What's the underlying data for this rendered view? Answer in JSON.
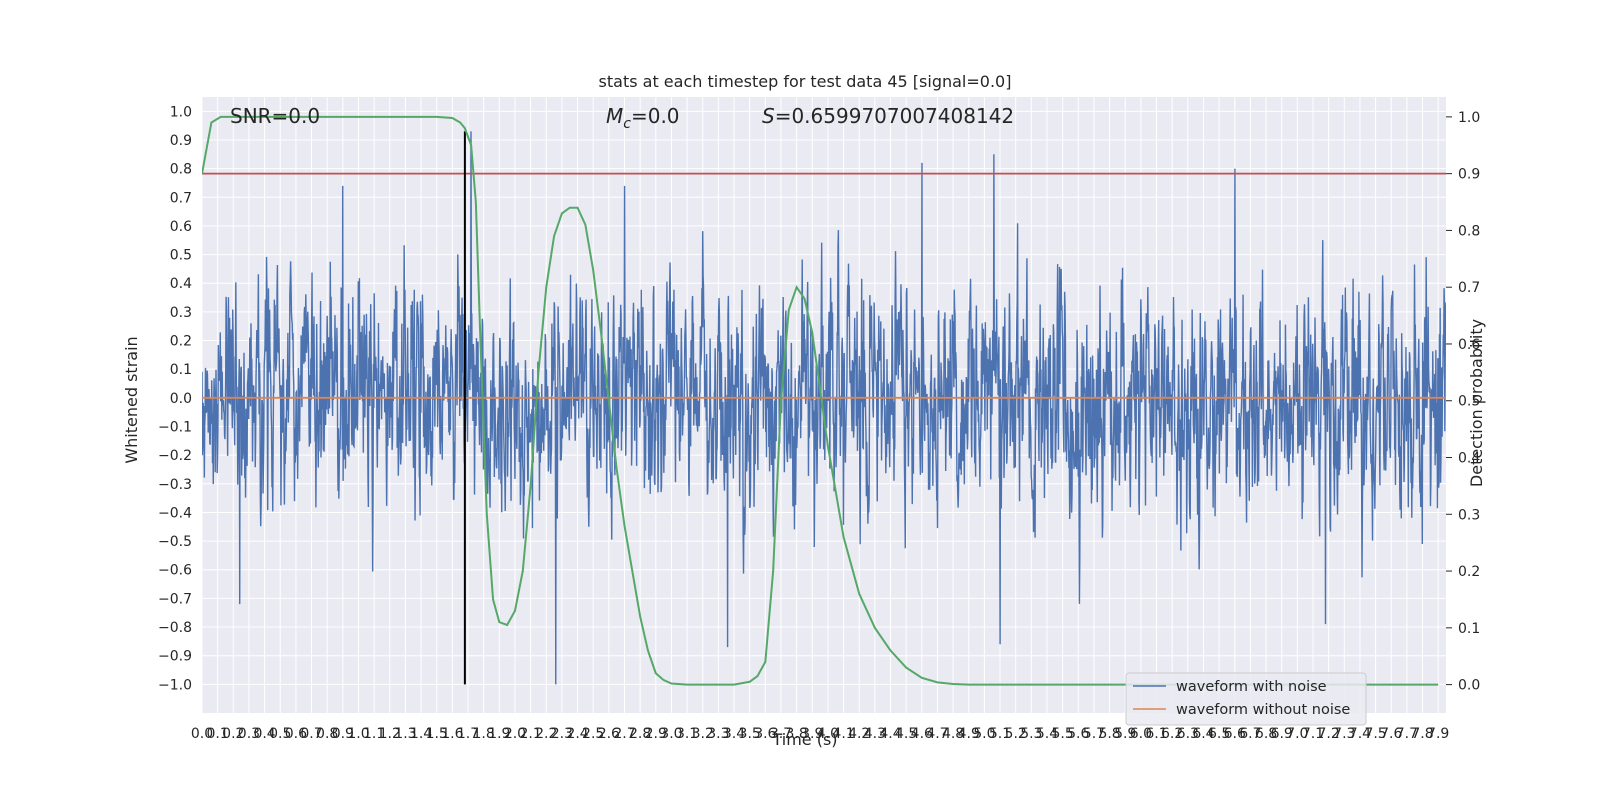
{
  "chart_data": {
    "type": "line",
    "title": "stats at each timestep for test data 45 [signal=0.0]",
    "xlabel": "Time (s)",
    "ylabel": "Whitened strain",
    "ylabel_right": "Detection probability",
    "xlim": [
      0.0,
      7.95
    ],
    "ylim": [
      -1.1,
      1.05
    ],
    "ylim_right": [
      -0.05,
      1.035
    ],
    "x_ticks": [
      0.0,
      0.1,
      0.2,
      0.3,
      0.4,
      0.5,
      0.6,
      0.7,
      0.8,
      0.9,
      1.0,
      1.1,
      1.2,
      1.3,
      1.4,
      1.5,
      1.6,
      1.7,
      1.8,
      1.9,
      2.0,
      2.1,
      2.2,
      2.3,
      2.4,
      2.5,
      2.6,
      2.7,
      2.8,
      2.9,
      3.0,
      3.1,
      3.2,
      3.3,
      3.4,
      3.5,
      3.6,
      3.7,
      3.8,
      3.9,
      4.0,
      4.1,
      4.2,
      4.3,
      4.4,
      4.5,
      4.6,
      4.7,
      4.8,
      4.9,
      5.0,
      5.1,
      5.2,
      5.3,
      5.4,
      5.5,
      5.6,
      5.7,
      5.8,
      5.9,
      6.0,
      6.1,
      6.2,
      6.3,
      6.4,
      6.5,
      6.6,
      6.7,
      6.8,
      6.9,
      7.0,
      7.1,
      7.2,
      7.3,
      7.4,
      7.5,
      7.6,
      7.7,
      7.8,
      7.9
    ],
    "x_tick_labels": [
      "0.0",
      "0.1",
      "0.2",
      "0.3",
      "0.4",
      "0.5",
      "0.6",
      "0.7",
      "0.8",
      "0.9",
      "1.0",
      "1.1",
      "1.2",
      "1.3",
      "1.4",
      "1.5",
      "1.6",
      "1.7",
      "1.8",
      "1.9",
      "2.0",
      "2.1",
      "2.2",
      "2.3",
      "2.4",
      "2.5",
      "2.6",
      "2.7",
      "2.8",
      "2.9",
      "3.0",
      "3.1",
      "3.2",
      "3.3",
      "3.4",
      "3.5",
      "3.6",
      "3.7",
      "3.8",
      "3.9",
      "4.0",
      "4.1",
      "4.2",
      "4.3",
      "4.4",
      "4.5",
      "4.6",
      "4.7",
      "4.8",
      "4.9",
      "5.0",
      "5.1",
      "5.2",
      "5.3",
      "5.4",
      "5.5",
      "5.6",
      "5.7",
      "5.8",
      "5.9",
      "6.0",
      "6.1",
      "6.2",
      "6.3",
      "6.4",
      "6.5",
      "6.6",
      "6.7",
      "6.8",
      "6.9",
      "7.0",
      "7.1",
      "7.2",
      "7.3",
      "7.4",
      "7.5",
      "7.6",
      "7.7",
      "7.8",
      "7.9"
    ],
    "y_ticks": [
      1.0,
      0.9,
      0.8,
      0.7,
      0.6,
      0.5,
      0.4,
      0.3,
      0.2,
      0.1,
      0.0,
      -0.1,
      -0.2,
      -0.3,
      -0.4,
      -0.5,
      -0.6,
      -0.7,
      -0.8,
      -0.9,
      -1.0
    ],
    "y_tick_labels": [
      "1.0",
      "0.9",
      "0.8",
      "0.7",
      "0.6",
      "0.5",
      "0.4",
      "0.3",
      "0.2",
      "0.1",
      "0.0",
      "−0.1",
      "−0.2",
      "−0.3",
      "−0.4",
      "−0.5",
      "−0.6",
      "−0.7",
      "−0.8",
      "−0.9",
      "−1.0"
    ],
    "y_right_ticks": [
      1.0,
      0.9,
      0.8,
      0.7,
      0.6,
      0.5,
      0.4,
      0.3,
      0.2,
      0.1,
      0.0
    ],
    "y_right_tick_labels": [
      "1.0",
      "0.9",
      "0.8",
      "0.7",
      "0.6",
      "0.5",
      "0.4",
      "0.3",
      "0.2",
      "0.1",
      "0.0"
    ],
    "grid": true,
    "legend_position": "lower-right",
    "annotations": {
      "snr": "SNR=0.0",
      "mc_symbol": "M",
      "mc_subscript": "c",
      "mc_value": "=0.0",
      "s_symbol": "S",
      "s_value": "=0.6599707007408142"
    },
    "marker_time": 1.68,
    "threshold": 0.9,
    "series": [
      {
        "name": "waveform with noise",
        "color": "#4c72b0",
        "axis": "left",
        "noise_envelope": 0.3,
        "amplitude_range": [
          -1.0,
          0.93
        ],
        "peaks": [
          {
            "x": 1.72,
            "y": 0.93
          },
          {
            "x": 4.6,
            "y": 0.82
          },
          {
            "x": 5.06,
            "y": 0.85
          },
          {
            "x": 6.6,
            "y": 0.8
          },
          {
            "x": 2.7,
            "y": 0.74
          },
          {
            "x": 0.9,
            "y": 0.74
          },
          {
            "x": 3.36,
            "y": -0.87
          },
          {
            "x": 2.26,
            "y": -1.0
          },
          {
            "x": 5.1,
            "y": -0.86
          },
          {
            "x": 7.18,
            "y": -0.79
          },
          {
            "x": 0.24,
            "y": -0.72
          }
        ]
      },
      {
        "name": "waveform without noise",
        "color": "#dd8452",
        "axis": "left",
        "x": [
          0.0,
          7.95
        ],
        "y": [
          0.0,
          0.0
        ]
      },
      {
        "color": "#55a868",
        "axis": "right",
        "x": [
          0.0,
          0.06,
          0.12,
          0.2,
          0.4,
          0.8,
          1.2,
          1.5,
          1.6,
          1.65,
          1.68,
          1.72,
          1.75,
          1.78,
          1.82,
          1.86,
          1.9,
          1.95,
          2.0,
          2.05,
          2.1,
          2.15,
          2.2,
          2.25,
          2.3,
          2.35,
          2.4,
          2.45,
          2.5,
          2.55,
          2.6,
          2.65,
          2.7,
          2.75,
          2.8,
          2.85,
          2.9,
          2.95,
          3.0,
          3.1,
          3.2,
          3.3,
          3.4,
          3.5,
          3.55,
          3.6,
          3.65,
          3.7,
          3.75,
          3.8,
          3.85,
          3.9,
          3.95,
          4.0,
          4.05,
          4.1,
          4.2,
          4.3,
          4.4,
          4.5,
          4.6,
          4.7,
          4.8,
          4.9,
          5.0,
          5.2,
          6.0,
          7.0,
          7.9
        ],
        "y": [
          0.9,
          0.99,
          1.0,
          1.0,
          1.0,
          1.0,
          1.0,
          1.0,
          0.998,
          0.99,
          0.98,
          0.95,
          0.85,
          0.6,
          0.3,
          0.15,
          0.11,
          0.105,
          0.13,
          0.2,
          0.35,
          0.55,
          0.7,
          0.79,
          0.83,
          0.84,
          0.84,
          0.81,
          0.73,
          0.62,
          0.5,
          0.38,
          0.28,
          0.2,
          0.12,
          0.06,
          0.02,
          0.008,
          0.002,
          0.0,
          0.0,
          0.0,
          0.0,
          0.005,
          0.015,
          0.04,
          0.2,
          0.5,
          0.66,
          0.7,
          0.68,
          0.62,
          0.52,
          0.42,
          0.34,
          0.26,
          0.16,
          0.1,
          0.06,
          0.03,
          0.012,
          0.004,
          0.001,
          0.0,
          0.0,
          0.0,
          0.0,
          0.0,
          0.0
        ]
      }
    ]
  }
}
